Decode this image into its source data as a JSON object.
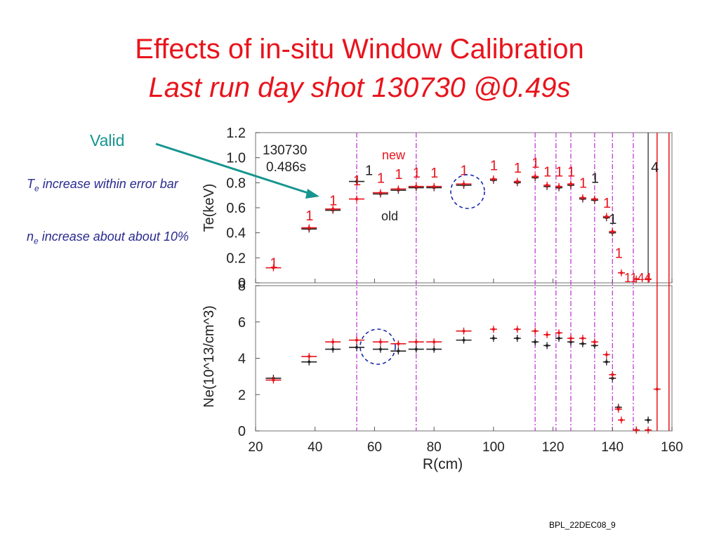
{
  "slide": {
    "title_line1": "Effects of in-situ Window Calibration",
    "title_line2": "Last run day shot 130730 @0.49s",
    "valid_label": "Valid",
    "note1_prefix": "T",
    "note1_sub": "e",
    "note1_text": " increase within error bar",
    "note2_prefix": "n",
    "note2_sub": "e",
    "note2_text": " increase about about 10%",
    "footer": "BPL_22DEC08_9"
  },
  "colors": {
    "title": "#e8141c",
    "valid": "#16958f",
    "notes": "#2a2a8f",
    "new": "#e8141c",
    "old": "#222222",
    "vline": "#c23bd6",
    "circle": "#1a2aa8"
  },
  "chart_data": [
    {
      "type": "scatter",
      "annotation_shot": "130730",
      "annotation_time": "0.486s",
      "label_new": "new",
      "label_old": "old",
      "ylabel": "Te(keV)",
      "ylim": [
        0,
        1.2
      ],
      "yticks": [
        "0",
        "0.2",
        "0.4",
        "0.6",
        "0.8",
        "1.0",
        "1.2"
      ],
      "marker_1": "1",
      "marker_4": "4",
      "marker_1144": "1144",
      "series": [
        {
          "name": "new",
          "x": [
            26,
            38,
            46,
            54,
            62,
            68,
            74,
            80,
            90,
            100,
            108,
            114,
            118,
            122,
            126,
            130,
            134,
            138,
            140,
            143,
            148,
            152
          ],
          "y": [
            0.12,
            0.44,
            0.59,
            0.67,
            0.72,
            0.75,
            0.77,
            0.77,
            0.79,
            0.83,
            0.81,
            0.85,
            0.78,
            0.77,
            0.79,
            0.68,
            0.67,
            0.53,
            0.41,
            0.08,
            0.03,
            0.03
          ]
        },
        {
          "name": "old",
          "x": [
            38,
            46,
            54,
            62,
            68,
            74,
            80,
            90,
            100,
            108,
            114,
            118,
            122,
            126,
            130,
            134,
            138,
            140
          ],
          "y": [
            0.43,
            0.58,
            0.81,
            0.71,
            0.74,
            0.76,
            0.76,
            0.78,
            0.82,
            0.8,
            0.84,
            0.77,
            0.76,
            0.78,
            0.67,
            0.66,
            0.52,
            0.4
          ]
        }
      ]
    },
    {
      "type": "scatter",
      "xlabel": "R(cm)",
      "ylabel": "Ne(10^13/cm^3)",
      "xlim": [
        20,
        160
      ],
      "ylim": [
        0,
        8
      ],
      "xticks": [
        "20",
        "40",
        "60",
        "80",
        "100",
        "120",
        "140",
        "160"
      ],
      "yticks": [
        "0",
        "2",
        "4",
        "6",
        "8"
      ],
      "series": [
        {
          "name": "new",
          "x": [
            26,
            38,
            46,
            54,
            62,
            68,
            74,
            80,
            90,
            100,
            108,
            114,
            118,
            122,
            126,
            130,
            134,
            138,
            140,
            142,
            143,
            148,
            152,
            155
          ],
          "y": [
            2.8,
            4.1,
            4.9,
            5.0,
            4.9,
            4.8,
            4.9,
            4.9,
            5.5,
            5.6,
            5.6,
            5.5,
            5.3,
            5.4,
            5.1,
            5.1,
            4.9,
            4.2,
            3.1,
            1.2,
            0.6,
            0.05,
            0.05,
            2.3
          ]
        },
        {
          "name": "old",
          "x": [
            26,
            38,
            46,
            54,
            62,
            68,
            74,
            80,
            90,
            100,
            108,
            114,
            118,
            122,
            126,
            130,
            134,
            138,
            140,
            142,
            148,
            152
          ],
          "y": [
            2.9,
            3.8,
            4.5,
            4.6,
            4.5,
            4.4,
            4.5,
            4.5,
            5.0,
            5.1,
            5.1,
            4.9,
            4.7,
            5.1,
            4.9,
            4.8,
            4.7,
            3.8,
            2.9,
            1.3,
            0.05,
            0.6
          ]
        }
      ],
      "vertical_lines_x": [
        54,
        74,
        114,
        121,
        126,
        134,
        140,
        147
      ]
    }
  ]
}
